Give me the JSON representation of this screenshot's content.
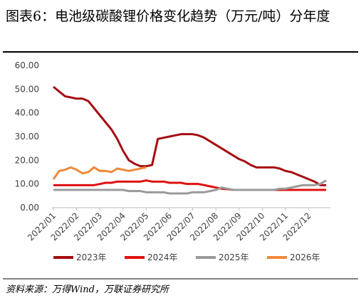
{
  "chart_data": {
    "type": "line",
    "title": "图表6：电池级碳酸锂价格变化趋势（万元/吨）分年度",
    "source": "资料来源：万得Wind，万联证券研究所",
    "categories": [
      "2022/01",
      null,
      null,
      null,
      "2022/02",
      null,
      null,
      null,
      "2022/03",
      null,
      null,
      null,
      "2022/04",
      null,
      null,
      null,
      "2022/05",
      null,
      null,
      null,
      "2022/06",
      null,
      null,
      null,
      "2022/07",
      null,
      null,
      null,
      "2022/08",
      null,
      null,
      null,
      "2022/09",
      null,
      null,
      null,
      "2022/10",
      null,
      null,
      null,
      "2022/11",
      null,
      null,
      null,
      "2022/12",
      null,
      null,
      null
    ],
    "series": [
      {
        "name": "2023年",
        "color": "#a50d12",
        "values": [
          51,
          49,
          47,
          46.5,
          46,
          46,
          45,
          42,
          39,
          36,
          33,
          29,
          24,
          20,
          18.5,
          17.5,
          17.5,
          18,
          29,
          29.5,
          30,
          30.5,
          31,
          31,
          31,
          30.5,
          29.5,
          28,
          26.5,
          25,
          23.5,
          22,
          20.5,
          19.5,
          18,
          17,
          17,
          17,
          17,
          16.5,
          15.5,
          15,
          14,
          13,
          12,
          11,
          9.5,
          9.5
        ]
      },
      {
        "name": "2024年",
        "color": "#e01010",
        "values": [
          9.5,
          9.5,
          9.5,
          9.5,
          9.5,
          9.5,
          9.5,
          9.5,
          10,
          10.5,
          10.5,
          11,
          11,
          11,
          11,
          11,
          11.5,
          11,
          11,
          11,
          10.5,
          10.5,
          10.5,
          10,
          10,
          10,
          9.5,
          9,
          8.5,
          8,
          7.8,
          7.5,
          7.5,
          7.5,
          7.5,
          7.5,
          7.5,
          7.5,
          7.5,
          7.5,
          7.5,
          7.5,
          7.5,
          7.5,
          7.5,
          7.5,
          7.5,
          7.5
        ]
      },
      {
        "name": "2025年",
        "color": "#9a9a9a",
        "values": [
          7.5,
          7.5,
          7.5,
          7.5,
          7.5,
          7.5,
          7.5,
          7.5,
          7.5,
          7.5,
          7.5,
          7.5,
          7.5,
          7,
          7,
          7,
          6.5,
          6.5,
          6.5,
          6.5,
          6,
          6,
          6,
          6,
          6.5,
          6.5,
          6.5,
          7,
          7.5,
          8.5,
          8,
          7.5,
          7.5,
          7.5,
          7.5,
          7.5,
          7.5,
          7.5,
          7.5,
          8,
          8,
          8.5,
          9,
          9.5,
          9.5,
          9.5,
          10,
          11.5
        ]
      },
      {
        "name": "2026年",
        "color": "#f0893a",
        "values": [
          12,
          15.5,
          16,
          17,
          16,
          14.5,
          15,
          17,
          15.5,
          15.5,
          15,
          16.5,
          16,
          15.5,
          16,
          16.5,
          17,
          null,
          null,
          null,
          null,
          null,
          null,
          null,
          null,
          null,
          null,
          null,
          null,
          null,
          null,
          null,
          null,
          null,
          null,
          null,
          null,
          null,
          null,
          null,
          null,
          null,
          null,
          null,
          null,
          null,
          null,
          null
        ]
      }
    ],
    "ylim": [
      0,
      60
    ],
    "yticks": [
      {
        "value": 0,
        "label": "0.00"
      },
      {
        "value": 10,
        "label": "10.00"
      },
      {
        "value": 20,
        "label": "20.00"
      },
      {
        "value": 30,
        "label": "30.00"
      },
      {
        "value": 40,
        "label": "40.00"
      },
      {
        "value": 50,
        "label": "50.00"
      },
      {
        "value": 60,
        "label": "60.00"
      }
    ],
    "grid": false
  }
}
